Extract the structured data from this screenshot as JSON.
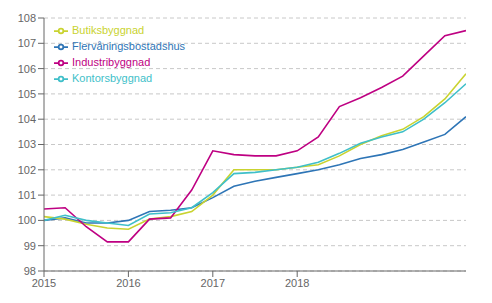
{
  "chart_data": {
    "type": "line",
    "x": [
      2015.0,
      2015.25,
      2015.5,
      2015.75,
      2016.0,
      2016.25,
      2016.5,
      2016.75,
      2017.0,
      2017.25,
      2017.5,
      2017.75,
      2018.0,
      2018.25,
      2018.5,
      2018.75,
      2019.0,
      2019.25,
      2019.5,
      2019.75,
      2020.0
    ],
    "series": [
      {
        "name": "Flervåningsbostadshus",
        "color": "#2E75B6",
        "values": [
          100.0,
          100.1,
          99.9,
          99.9,
          100.0,
          100.35,
          100.4,
          100.5,
          100.9,
          101.35,
          101.55,
          101.7,
          101.85,
          102.0,
          102.2,
          102.45,
          102.6,
          102.8,
          103.1,
          103.4,
          104.1
        ]
      },
      {
        "name": "Butiksbyggnad",
        "color": "#C9D330",
        "values": [
          100.15,
          100.05,
          99.85,
          99.7,
          99.65,
          100.05,
          100.15,
          100.35,
          101.0,
          102.0,
          102.0,
          102.0,
          102.1,
          102.2,
          102.55,
          103.0,
          103.35,
          103.6,
          104.1,
          104.8,
          105.8
        ]
      },
      {
        "name": "Industribyggnad",
        "color": "#BE0082",
        "values": [
          100.45,
          100.5,
          99.75,
          99.15,
          99.15,
          100.05,
          100.1,
          101.2,
          102.75,
          102.6,
          102.55,
          102.55,
          102.75,
          103.3,
          104.5,
          104.85,
          105.25,
          105.7,
          106.5,
          107.3,
          107.5
        ]
      },
      {
        "name": "Kontorsbyggnad",
        "color": "#3FBFC9",
        "values": [
          100.0,
          100.2,
          100.0,
          99.9,
          99.8,
          100.25,
          100.3,
          100.5,
          101.1,
          101.85,
          101.9,
          102.0,
          102.1,
          102.3,
          102.65,
          103.05,
          103.3,
          103.5,
          104.0,
          104.65,
          105.4
        ]
      }
    ],
    "xlim": [
      2015.0,
      2020.0
    ],
    "xticks": [
      2015,
      2016,
      2017,
      2018
    ],
    "ylim": [
      98,
      108
    ],
    "yticks": [
      98,
      99,
      100,
      101,
      102,
      103,
      104,
      105,
      106,
      107,
      108
    ],
    "grid": "y",
    "legend": "upper left"
  }
}
